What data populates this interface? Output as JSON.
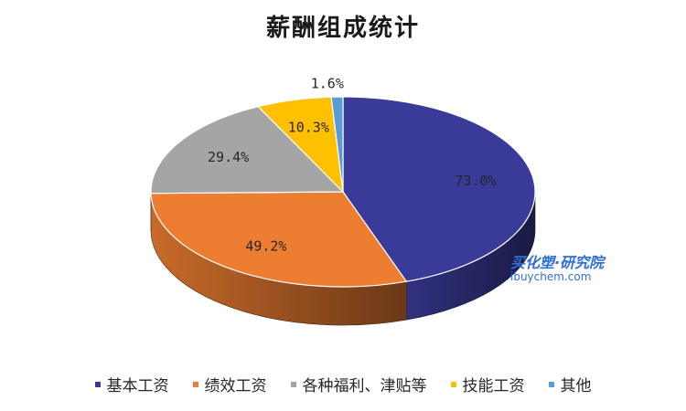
{
  "chart_data": {
    "type": "pie",
    "title": "薪酬组成统计",
    "categories": [
      "基本工资",
      "绩效工资",
      "各种福利、津贴等",
      "技能工资",
      "其他"
    ],
    "labels": [
      "73.0%",
      "49.2%",
      "29.4%",
      "10.3%",
      "1.6%"
    ],
    "values": [
      73.0,
      49.2,
      29.4,
      10.3,
      1.6
    ],
    "colors": [
      "#3a3a98",
      "#ed7d31",
      "#a5a5a5",
      "#ffc000",
      "#5b9bd5"
    ],
    "legend_position": "bottom",
    "style": "3d"
  },
  "watermark": {
    "line1": "买化塑·研究院",
    "line2": "ibuychem.com"
  }
}
